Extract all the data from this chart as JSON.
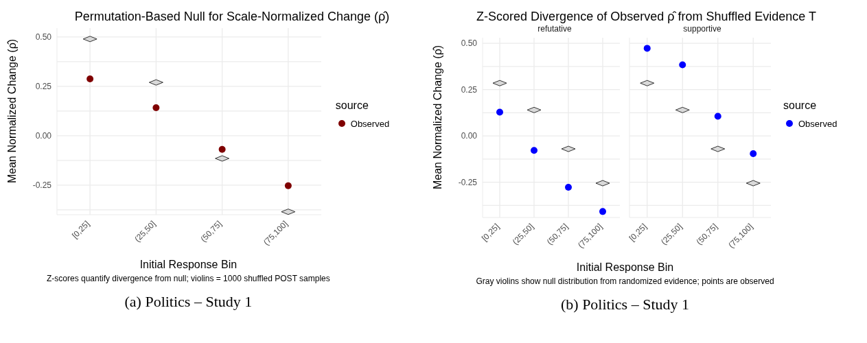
{
  "chart_data": [
    {
      "type": "scatter",
      "title": "Permutation-Based Null for Scale-Normalized Change (ρ̂)",
      "xlabel": "Initial Response Bin",
      "ylabel": "Mean Normalized Change (ρ̂)",
      "legend_title": "source",
      "legend": "right",
      "grid": true,
      "categories": [
        "[0,25]",
        "(25,50]",
        "(50,75]",
        "(75,100]"
      ],
      "ylim": [
        -0.4,
        0.545
      ],
      "yticks": [
        {
          "value": -0.375,
          "label": null
        },
        -0.25,
        {
          "value": -0.125,
          "label": null
        },
        {
          "value": 0,
          "label": "0.00"
        },
        {
          "value": 0.125,
          "label": null
        },
        0.25,
        {
          "value": 0.375,
          "label": null
        },
        {
          "value": 0.5,
          "label": "0.50"
        }
      ],
      "series": [
        {
          "color": "#d9d9d9",
          "marker": "diamond",
          "values": [
            0.49,
            0.27,
            -0.115,
            -0.385
          ]
        },
        {
          "name": "Observed",
          "color": "#7f0000",
          "marker": "circle",
          "values": [
            0.288,
            0.142,
            -0.069,
            -0.253
          ]
        }
      ],
      "annotations": [
        "Z-scores quantify divergence from null; violins = 1000 shuffled POST samples",
        "(a) Politics – Study 1"
      ]
    },
    {
      "type": "scatter",
      "title": "Z-Scored Divergence of Observed  ρ̂ from Shuffled Evidence T",
      "subtitle": "refutative",
      "xlabel": "Initial Response Bin",
      "ylabel": "Mean Normalized Change (ρ̂)",
      "grid": true,
      "categories": [
        "[0,25]",
        "(25,50]",
        "(50,75]",
        "(75,100]"
      ],
      "ylim": [
        -0.44,
        0.53
      ],
      "yticks": [
        {
          "value": -0.375,
          "label": null
        },
        -0.25,
        {
          "value": -0.125,
          "label": null
        },
        {
          "value": 0,
          "label": "0.00"
        },
        {
          "value": 0.125,
          "label": null
        },
        0.25,
        {
          "value": 0.375,
          "label": null
        },
        {
          "value": 0.5,
          "label": "0.50"
        }
      ],
      "series": [
        {
          "color": "#d9d9d9",
          "marker": "diamond",
          "values": [
            0.285,
            0.14,
            -0.07,
            -0.255
          ]
        },
        {
          "color": "#0000ff",
          "marker": "circle",
          "values": [
            0.128,
            -0.078,
            -0.277,
            -0.408
          ]
        }
      ],
      "annotations": [
        "Gray violins show null distribution from randomized evidence; points are observed",
        "(b) Politics – Study 1"
      ]
    },
    {
      "type": "scatter",
      "subtitle": "supportive",
      "legend_title": "source",
      "legend": "right",
      "grid": true,
      "tick_labels": "x",
      "categories": [
        "[0,25]",
        "(25,50]",
        "(50,75]",
        "(75,100]"
      ],
      "ylim": [
        -0.44,
        0.53
      ],
      "yticks": [
        -0.375,
        -0.25,
        -0.125,
        0,
        0.125,
        0.25,
        0.375,
        0.5
      ],
      "series": [
        {
          "color": "#d9d9d9",
          "marker": "diamond",
          "values": [
            0.285,
            0.14,
            -0.07,
            -0.255
          ]
        },
        {
          "name": "Observed",
          "color": "#0000ff",
          "marker": "circle",
          "values": [
            0.473,
            0.384,
            0.106,
            -0.096
          ]
        }
      ]
    }
  ]
}
